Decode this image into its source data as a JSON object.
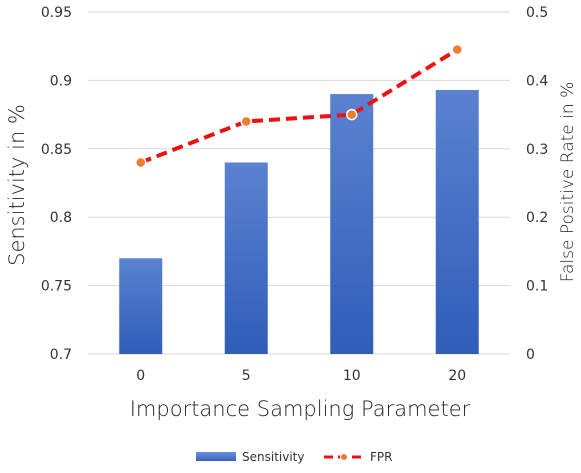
{
  "chart_data": {
    "type": "bar",
    "categories": [
      "0",
      "5",
      "10",
      "20"
    ],
    "xlabel": "Importance Sampling Parameter",
    "series": [
      {
        "name": "Sensitivity",
        "type": "bar",
        "axis": "left",
        "values": [
          0.77,
          0.84,
          0.89,
          0.893
        ],
        "color": "#4472C4"
      },
      {
        "name": "FPR",
        "type": "line",
        "axis": "right",
        "values": [
          0.28,
          0.34,
          0.35,
          0.445
        ],
        "color": "#EE1111",
        "marker_color": "#ED7D31"
      }
    ],
    "y_left": {
      "label": "Sensitivity in %",
      "range": [
        0.7,
        0.95
      ],
      "ticks": [
        "0.7",
        "0.75",
        "0.8",
        "0.85",
        "0.9",
        "0.95"
      ]
    },
    "y_right": {
      "label": "False Positive Rate in %",
      "range": [
        0,
        0.5
      ],
      "ticks": [
        "0",
        "0.1",
        "0.2",
        "0.3",
        "0.4",
        "0.5"
      ]
    },
    "grid": "horizontal",
    "legend_position": "bottom"
  }
}
